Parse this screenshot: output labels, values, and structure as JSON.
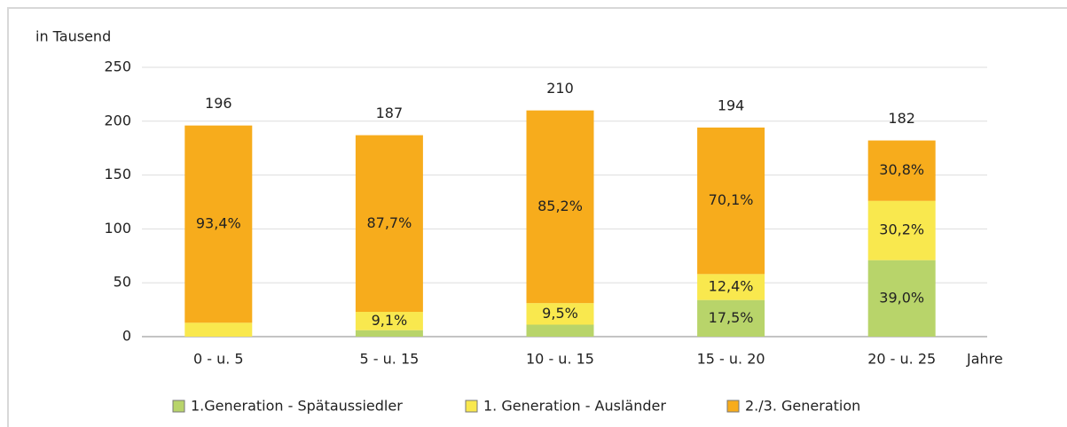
{
  "chart_data": {
    "type": "bar",
    "stacked": true,
    "y_label": "in Tausend",
    "x_label": "Jahre",
    "categories": [
      "0  - u. 5",
      "5  - u. 15",
      "10  - u. 15",
      "15  - u. 20",
      "20  - u. 25"
    ],
    "series": [
      {
        "name": "1.Generation - Spätaussiedler",
        "color": "#b8d46a",
        "values": [
          0,
          6.0,
          11.1,
          34.0,
          71.0
        ],
        "share_labels": [
          null,
          null,
          null,
          "17,5%",
          "39,0%"
        ]
      },
      {
        "name": "1. Generation - Ausländer",
        "color": "#f9e84e",
        "values": [
          12.9,
          17.0,
          20.0,
          24.1,
          55.0
        ],
        "share_labels": [
          null,
          "9,1%",
          "9,5%",
          "12,4%",
          "30,2%"
        ]
      },
      {
        "name": "2./3. Generation",
        "color": "#f7ac1c",
        "values": [
          183.1,
          164.0,
          178.9,
          136.0,
          56.1
        ],
        "share_labels": [
          "93,4%",
          "87,7%",
          "85,2%",
          "70,1%",
          "30,8%"
        ]
      }
    ],
    "totals": [
      196,
      187,
      210,
      194,
      182
    ],
    "ylim": [
      0,
      250
    ],
    "yticks": [
      0,
      50,
      100,
      150,
      200,
      250
    ],
    "grid": true,
    "legend": "bottom"
  }
}
